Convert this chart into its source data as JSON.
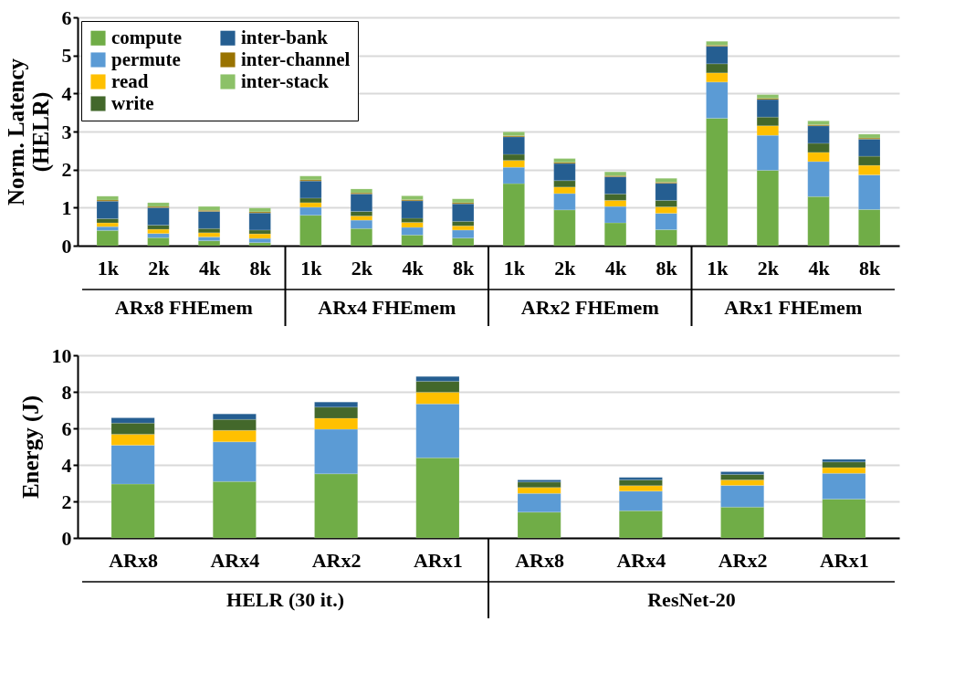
{
  "chart_data": [
    {
      "type": "bar",
      "stacked": true,
      "ylabel": "Norm. Latency (HELR)",
      "ylim": [
        0,
        6
      ],
      "yticks": [
        0,
        1,
        2,
        3,
        4,
        5,
        6
      ],
      "grid": "y",
      "legend": "top left",
      "categories": [
        "1k",
        "2k",
        "4k",
        "8k",
        "1k",
        "2k",
        "4k",
        "8k",
        "1k",
        "2k",
        "4k",
        "8k",
        "1k",
        "2k",
        "4k",
        "8k"
      ],
      "annotations": [
        "ARx8 FHEmem",
        "ARx4 FHEmem",
        "ARx2 FHEmem",
        "ARx1 FHEmem"
      ],
      "series": [
        {
          "name": "compute",
          "color": "#70ad47",
          "values": [
            0.4,
            0.21,
            0.13,
            0.08,
            0.8,
            0.45,
            0.28,
            0.2,
            1.63,
            0.94,
            0.6,
            0.42,
            3.35,
            1.98,
            1.29,
            0.95
          ]
        },
        {
          "name": "permute",
          "color": "#5b9bd5",
          "values": [
            0.1,
            0.11,
            0.1,
            0.11,
            0.21,
            0.22,
            0.2,
            0.21,
            0.43,
            0.43,
            0.43,
            0.43,
            0.95,
            0.92,
            0.92,
            0.91
          ]
        },
        {
          "name": "read",
          "color": "#ffc000",
          "values": [
            0.1,
            0.11,
            0.11,
            0.12,
            0.12,
            0.11,
            0.13,
            0.11,
            0.18,
            0.17,
            0.16,
            0.17,
            0.24,
            0.25,
            0.24,
            0.25
          ]
        },
        {
          "name": "write",
          "color": "#43682b",
          "values": [
            0.11,
            0.11,
            0.11,
            0.1,
            0.12,
            0.12,
            0.11,
            0.12,
            0.16,
            0.17,
            0.17,
            0.17,
            0.24,
            0.23,
            0.24,
            0.24
          ]
        },
        {
          "name": "inter-bank",
          "color": "#255e91",
          "values": [
            0.46,
            0.46,
            0.45,
            0.45,
            0.45,
            0.46,
            0.46,
            0.46,
            0.46,
            0.45,
            0.45,
            0.45,
            0.46,
            0.46,
            0.46,
            0.45
          ]
        },
        {
          "name": "inter-channel",
          "color": "#997300",
          "values": [
            0.03,
            0.03,
            0.03,
            0.03,
            0.03,
            0.03,
            0.03,
            0.03,
            0.03,
            0.03,
            0.03,
            0.03,
            0.03,
            0.03,
            0.03,
            0.03
          ]
        },
        {
          "name": "inter-stack",
          "color": "#8cc168",
          "values": [
            0.1,
            0.1,
            0.1,
            0.1,
            0.1,
            0.1,
            0.1,
            0.1,
            0.1,
            0.1,
            0.1,
            0.1,
            0.1,
            0.1,
            0.1,
            0.1
          ]
        }
      ]
    },
    {
      "type": "bar",
      "stacked": true,
      "ylabel": "Energy (J)",
      "ylim": [
        0,
        10
      ],
      "yticks": [
        0,
        2,
        4,
        6,
        8,
        10
      ],
      "grid": "y",
      "categories": [
        "ARx8",
        "ARx4",
        "ARx2",
        "ARx1",
        "ARx8",
        "ARx4",
        "ARx2",
        "ARx1"
      ],
      "annotations": [
        "HELR (30 it.)",
        "ResNet-20"
      ],
      "series": [
        {
          "color": "#70ad47",
          "values": [
            2.95,
            3.09,
            3.51,
            4.39,
            1.41,
            1.49,
            1.69,
            2.13
          ]
        },
        {
          "color": "#5b9bd5",
          "values": [
            2.13,
            2.17,
            2.44,
            2.95,
            1.03,
            1.07,
            1.18,
            1.41
          ]
        },
        {
          "color": "#ffc000",
          "values": [
            0.6,
            0.63,
            0.6,
            0.63,
            0.32,
            0.3,
            0.3,
            0.31
          ]
        },
        {
          "color": "#43682b",
          "values": [
            0.61,
            0.6,
            0.61,
            0.6,
            0.3,
            0.32,
            0.31,
            0.31
          ]
        },
        {
          "color": "#255e91",
          "values": [
            0.28,
            0.3,
            0.28,
            0.27,
            0.12,
            0.13,
            0.14,
            0.14
          ]
        }
      ]
    }
  ]
}
